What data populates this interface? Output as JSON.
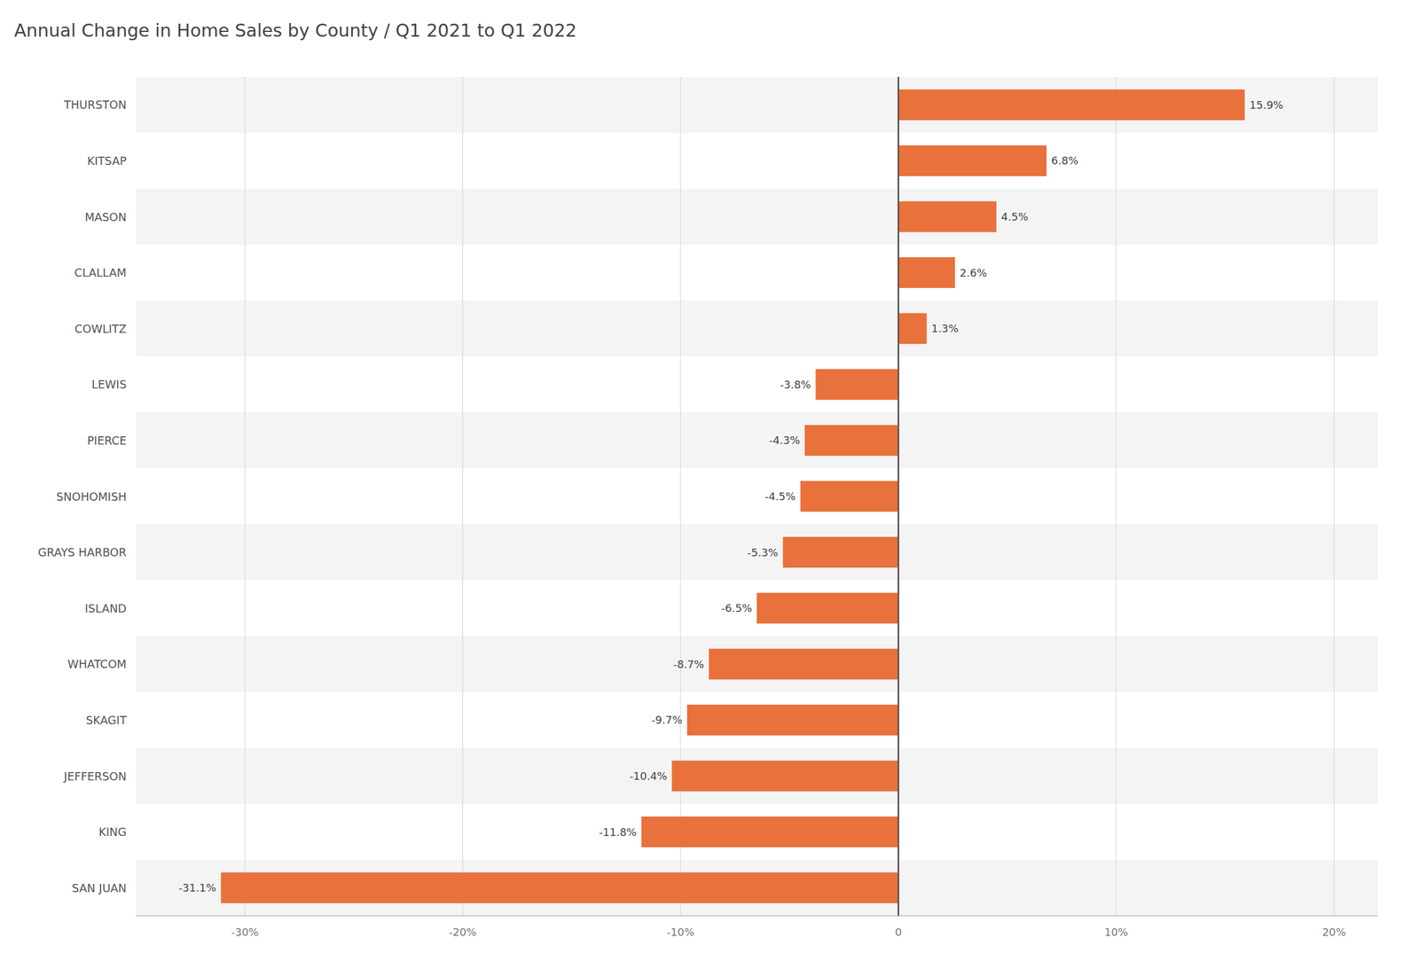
{
  "chart_data": {
    "type": "bar",
    "orientation": "horizontal",
    "title": "Annual Change in Home Sales by County   /   Q1 2021 to Q1 2022",
    "categories": [
      "THURSTON",
      "KITSAP",
      "MASON",
      "CLALLAM",
      "COWLITZ",
      "LEWIS",
      "PIERCE",
      "SNOHOMISH",
      "GRAYS HARBOR",
      "ISLAND",
      "WHATCOM",
      "SKAGIT",
      "JEFFERSON",
      "KING",
      "SAN JUAN"
    ],
    "values": [
      15.9,
      6.8,
      4.5,
      2.6,
      1.3,
      -3.8,
      -4.3,
      -4.5,
      -5.3,
      -6.5,
      -8.7,
      -9.7,
      -10.4,
      -11.8,
      -31.1
    ],
    "value_labels": [
      "15.9%",
      "6.8%",
      "4.5%",
      "2.6%",
      "1.3%",
      "-3.8%",
      "-4.3%",
      "-4.5%",
      "-5.3%",
      "-6.5%",
      "-8.7%",
      "-9.7%",
      "-10.4%",
      "-11.8%",
      "-31.1%"
    ],
    "data_labels": true,
    "color": "#E8713C",
    "xlim": [
      -35,
      22
    ],
    "xticks": [
      {
        "value": -30,
        "label": "-30%"
      },
      {
        "value": -20,
        "label": "-20%"
      },
      {
        "value": -10,
        "label": "-10%"
      },
      0,
      {
        "value": 10,
        "label": "10%"
      },
      {
        "value": 20,
        "label": "20%"
      }
    ],
    "grid": true
  }
}
